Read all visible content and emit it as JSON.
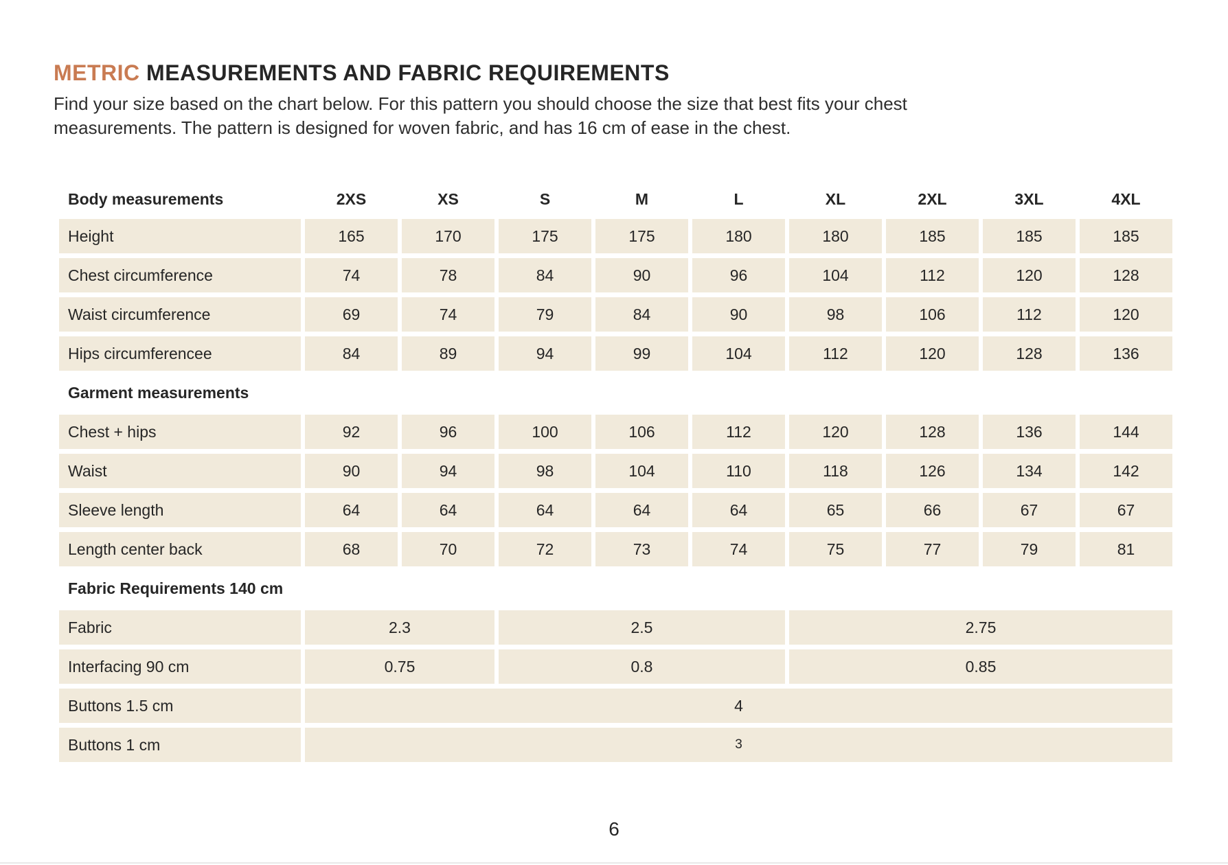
{
  "page": {
    "title_accent": "METRIC",
    "title_rest": " MEASUREMENTS AND FABRIC REQUIREMENTS",
    "intro_line1": "Find your size based on the chart below. For this pattern you should choose the size that best fits your chest",
    "intro_line2": "measurements. The pattern is designed for woven fabric, and has 16 cm of ease in the chest.",
    "page_number": "6"
  },
  "colors": {
    "accent": "#C97B52",
    "cell_bg": "#F1EADB",
    "text": "#262626"
  },
  "table": {
    "header": {
      "label": "Body measurements",
      "sizes": [
        "2XS",
        "XS",
        "S",
        "M",
        "L",
        "XL",
        "2XL",
        "3XL",
        "4XL"
      ]
    },
    "body_rows": [
      {
        "label": "Height",
        "values": [
          "165",
          "170",
          "175",
          "175",
          "180",
          "180",
          "185",
          "185",
          "185"
        ]
      },
      {
        "label": "Chest circumference",
        "values": [
          "74",
          "78",
          "84",
          "90",
          "96",
          "104",
          "112",
          "120",
          "128"
        ]
      },
      {
        "label": "Waist circumference",
        "values": [
          "69",
          "74",
          "79",
          "84",
          "90",
          "98",
          "106",
          "112",
          "120"
        ]
      },
      {
        "label": "Hips circumferencee",
        "values": [
          "84",
          "89",
          "94",
          "99",
          "104",
          "112",
          "120",
          "128",
          "136"
        ]
      }
    ],
    "garment_section_label": "Garment measurements",
    "garment_rows": [
      {
        "label": "Chest + hips",
        "values": [
          "92",
          "96",
          "100",
          "106",
          "112",
          "120",
          "128",
          "136",
          "144"
        ]
      },
      {
        "label": "Waist",
        "values": [
          "90",
          "94",
          "98",
          "104",
          "110",
          "118",
          "126",
          "134",
          "142"
        ]
      },
      {
        "label": "Sleeve length",
        "values": [
          "64",
          "64",
          "64",
          "64",
          "64",
          "65",
          "66",
          "67",
          "67"
        ]
      },
      {
        "label": "Length center back",
        "values": [
          "68",
          "70",
          "72",
          "73",
          "74",
          "75",
          "77",
          "79",
          "81"
        ]
      }
    ],
    "fabric_section_label": "Fabric Requirements 140 cm",
    "fabric_row": {
      "label": "Fabric",
      "values": [
        "2.3",
        "2.5",
        "2.75"
      ]
    },
    "interfacing_row": {
      "label": "Interfacing 90 cm",
      "values": [
        "0.75",
        "0.8",
        "0.85"
      ]
    },
    "buttons15_row": {
      "label": "Buttons 1.5 cm",
      "value": "4"
    },
    "buttons1_row": {
      "label": "Buttons 1 cm",
      "value": "3"
    }
  }
}
